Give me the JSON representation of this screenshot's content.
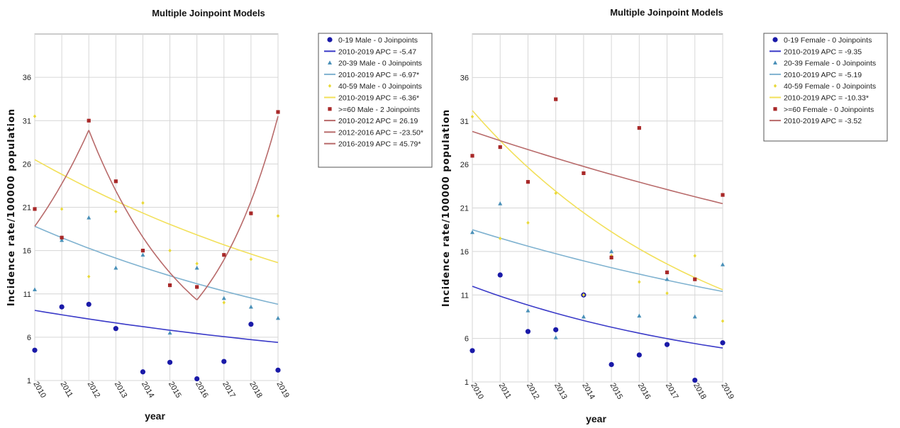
{
  "chart_data": [
    {
      "type": "line",
      "title": "Multiple Joinpoint Models",
      "xlabel": "year",
      "ylabel": "Incidence rate/100000 population",
      "x": [
        2010,
        2011,
        2012,
        2013,
        2014,
        2015,
        2016,
        2017,
        2018,
        2019
      ],
      "ylim": [
        1,
        41
      ],
      "yticks": [
        1,
        6,
        11,
        16,
        21,
        26,
        31,
        36
      ],
      "grid": true,
      "legend_position": "right",
      "series": [
        {
          "name": "0-19 Male - 0 Joinpoints",
          "color": "#1a1aa8",
          "marker": "circle",
          "observed": [
            4.5,
            9.5,
            9.8,
            7,
            2,
            3.1,
            1.2,
            3.2,
            7.5,
            2.2
          ],
          "trends": [
            {
              "label": "2010-2019 APC  = -5.47",
              "color": "#3a3ac8",
              "from": 2010,
              "to": 2019,
              "values": [
                9.1,
                5.4
              ]
            }
          ]
        },
        {
          "name": "20-39 Male - 0 Joinpoints",
          "color": "#4a90b8",
          "marker": "triangle",
          "observed": [
            11.5,
            17.2,
            19.8,
            14,
            15.5,
            6.5,
            14,
            10.5,
            9.5,
            8.2
          ],
          "trends": [
            {
              "label": "2010-2019 APC  = -6.97*",
              "color": "#7fb2d0",
              "from": 2010,
              "to": 2019,
              "values": [
                18.8,
                9.8
              ]
            }
          ]
        },
        {
          "name": "40-59 Male - 0 Joinpoints",
          "color": "#e8d838",
          "marker": "diamond",
          "observed": [
            31.5,
            20.8,
            13,
            20.5,
            21.5,
            16,
            14.5,
            10,
            15,
            20
          ],
          "trends": [
            {
              "label": "2010-2019 APC  = -6.36*",
              "color": "#f2e05a",
              "from": 2010,
              "to": 2019,
              "values": [
                26.5,
                14.6
              ]
            }
          ]
        },
        {
          "name": ">=60 Male - 2 Joinpoints",
          "color": "#a82828",
          "marker": "square",
          "observed": [
            20.8,
            17.5,
            31,
            24,
            16,
            12,
            11.8,
            15.5,
            20.3,
            32
          ],
          "trends": [
            {
              "label": "2010-2012 APC  =  26.19",
              "color": "#b86a6a",
              "from": 2010,
              "to": 2012,
              "values": [
                18.8,
                29.9
              ]
            },
            {
              "label": "2012-2016 APC  = -23.50*",
              "color": "#b86a6a",
              "from": 2012,
              "to": 2016,
              "values": [
                29.9,
                10.3
              ]
            },
            {
              "label": "2016-2019 APC  = 45.79*",
              "color": "#b86a6a",
              "from": 2016,
              "to": 2019,
              "values": [
                10.3,
                31.5
              ]
            }
          ]
        }
      ]
    },
    {
      "type": "line",
      "title": "Multiple Joinpoint Models",
      "xlabel": "year",
      "ylabel": "Incidence rate/100000 population",
      "x": [
        2010,
        2011,
        2012,
        2013,
        2014,
        2015,
        2016,
        2017,
        2018,
        2019
      ],
      "ylim": [
        1,
        41
      ],
      "yticks": [
        1,
        6,
        11,
        16,
        21,
        26,
        31,
        36
      ],
      "grid": true,
      "legend_position": "right",
      "series": [
        {
          "name": "0-19 Female - 0 Joinpoints",
          "color": "#1a1aa8",
          "marker": "circle",
          "observed": [
            4.6,
            13.3,
            6.8,
            7,
            11,
            3,
            4.1,
            5.3,
            1.2,
            5.5
          ],
          "trends": [
            {
              "label": "2010-2019 APC  = -9.35",
              "color": "#3a3ac8",
              "from": 2010,
              "to": 2019,
              "values": [
                12,
                4.9
              ]
            }
          ]
        },
        {
          "name": "20-39 Female - 0 Joinpoints",
          "color": "#4a90b8",
          "marker": "triangle",
          "observed": [
            18.2,
            21.5,
            9.2,
            6.1,
            8.5,
            16,
            8.6,
            12.8,
            8.5,
            14.5
          ],
          "trends": [
            {
              "label": "2010-2019 APC  = -5.19",
              "color": "#7fb2d0",
              "from": 2010,
              "to": 2019,
              "values": [
                18.5,
                11.4
              ]
            }
          ]
        },
        {
          "name": "40-59 Female - 0 Joinpoints",
          "color": "#e8d838",
          "marker": "diamond",
          "observed": [
            31.5,
            17.5,
            19.3,
            22.7,
            11,
            15.5,
            12.5,
            11.2,
            15.5,
            8
          ],
          "trends": [
            {
              "label": "2010-2019 APC  = -10.33*",
              "color": "#f2e05a",
              "from": 2010,
              "to": 2019,
              "values": [
                32.2,
                11.6
              ]
            }
          ]
        },
        {
          "name": ">=60 Female - 0 Joinpoints",
          "color": "#a82828",
          "marker": "square",
          "observed": [
            27,
            28,
            24,
            33.5,
            25,
            15.3,
            30.2,
            13.6,
            12.8,
            22.5
          ],
          "trends": [
            {
              "label": "2010-2019 APC  = -3.52",
              "color": "#b86a6a",
              "from": 2010,
              "to": 2019,
              "values": [
                29.8,
                21.5
              ]
            }
          ]
        }
      ]
    }
  ]
}
